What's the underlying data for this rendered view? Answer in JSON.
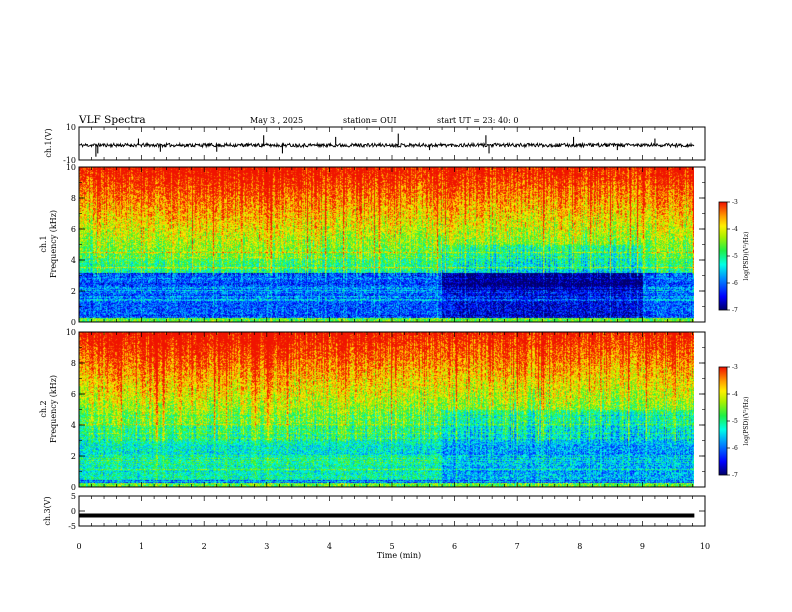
{
  "header": {
    "title": "VLF Spectra",
    "date": "May 3  , 2025",
    "station": "station= OUI",
    "start": "start  UT  =   23: 40: 0"
  },
  "chart_data": [
    {
      "type": "line",
      "name": "ch1-waveform",
      "ylabel": "ch.1(V)",
      "ylim": [
        -10,
        10
      ],
      "ytick_labels": [
        "10",
        "-10"
      ],
      "xlim": [
        0,
        10
      ],
      "baseline": -1,
      "x_end": 9.83,
      "spikes": [
        {
          "x": 0.27,
          "y": -8
        },
        {
          "x": 0.3,
          "y": -6
        },
        {
          "x": 0.95,
          "y": 3
        },
        {
          "x": 1.3,
          "y": -5
        },
        {
          "x": 2.2,
          "y": -5
        },
        {
          "x": 2.95,
          "y": 5
        },
        {
          "x": 3.25,
          "y": -6
        },
        {
          "x": 4.1,
          "y": 4
        },
        {
          "x": 5.1,
          "y": 6
        },
        {
          "x": 5.6,
          "y": -4
        },
        {
          "x": 6.5,
          "y": 5
        },
        {
          "x": 6.55,
          "y": -6
        },
        {
          "x": 7.9,
          "y": 4
        },
        {
          "x": 8.6,
          "y": -4
        },
        {
          "x": 9.2,
          "y": 3
        }
      ]
    },
    {
      "type": "heatmap",
      "name": "ch1-spectrogram",
      "ylabel": "ch.1\nFrequency  (kHz)",
      "ylim": [
        0,
        10
      ],
      "ytick_labels": [
        "0",
        "2",
        "4",
        "6",
        "8",
        "10"
      ],
      "xlim": [
        0,
        10
      ],
      "x_end": 9.83,
      "colorbar": {
        "label": "log(PSD)(V²/Hz)",
        "range": [
          -7,
          -3
        ],
        "tick_labels": [
          "-3",
          "-4",
          "-5",
          "-6",
          "-7"
        ]
      },
      "low_band_khz": [
        0.3,
        3.2
      ],
      "low_band_level": -6.3,
      "quiet_window_min": [
        5.8,
        9.0
      ],
      "hiss_peak_min": 2.5
    },
    {
      "type": "heatmap",
      "name": "ch2-spectrogram",
      "ylabel": "ch.2\nFrequency  (kHz)",
      "ylim": [
        0,
        10
      ],
      "ytick_labels": [
        "0",
        "2",
        "4",
        "6",
        "8",
        "10"
      ],
      "xlim": [
        0,
        10
      ],
      "x_end": 9.83,
      "colorbar": {
        "label": "log(PSD)(V²/Hz)",
        "range": [
          -7,
          -3
        ],
        "tick_labels": [
          "-3",
          "-4",
          "-5",
          "-6",
          "-7"
        ]
      },
      "low_band_khz": [
        0.5,
        2.0
      ],
      "low_band_level": -5.4,
      "quiet_window_min": [
        5.8,
        9.8
      ],
      "hiss_peak_min": 1.8
    },
    {
      "type": "line",
      "name": "ch3-waveform",
      "ylabel": "ch.3(V)",
      "ylim": [
        -5,
        5
      ],
      "ytick_labels": [
        "5",
        "0",
        "-5"
      ],
      "xlim": [
        0,
        10
      ],
      "values": [
        {
          "x": 0,
          "y": -1.5
        },
        {
          "x": 9.83,
          "y": -1.5
        }
      ]
    }
  ],
  "xaxis": {
    "label": "Time  (min)",
    "tick_labels": [
      "0",
      "1",
      "2",
      "3",
      "4",
      "5",
      "6",
      "7",
      "8",
      "9",
      "10"
    ]
  }
}
